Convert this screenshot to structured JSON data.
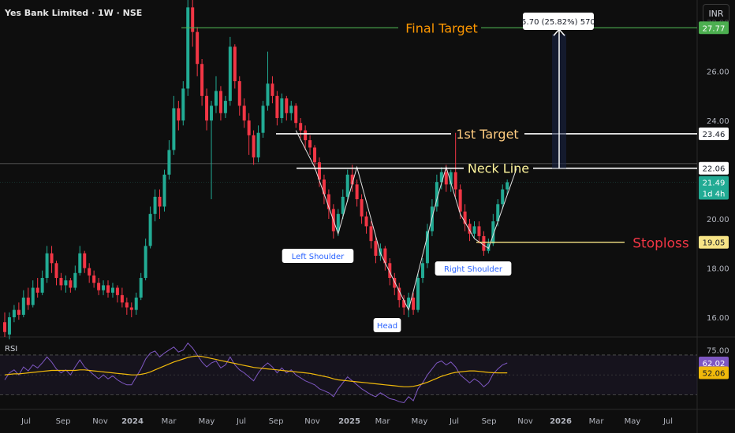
{
  "header": {
    "title": "Yes Bank Limited · 1W · NSE",
    "currency": "INR"
  },
  "colors": {
    "bg": "#0e0e0e",
    "up": "#22ab94",
    "down": "#f23645",
    "target": "#4caf50",
    "neck": "#ffffff",
    "stop": "#f7e486",
    "rsi": "#7e57c2",
    "rsi_ma": "#f0b90b",
    "pattern": "#e0e0e0",
    "arrow": "#ffffff"
  },
  "chart_data": [
    {
      "type": "candlestick",
      "title": "Yes Bank Limited · 1W · NSE",
      "x_ticks": [
        "Jul",
        "Sep",
        "Nov",
        "2024",
        "Mar",
        "May",
        "Jul",
        "Sep",
        "Nov",
        "2025",
        "Mar",
        "May",
        "Jul",
        "Sep",
        "Nov",
        "2026",
        "Mar",
        "May",
        "Jul"
      ],
      "y_ticks": [
        "16.00",
        "18.00",
        "20.00",
        "22.00",
        "24.00",
        "26.00"
      ],
      "ylim": [
        15.2,
        28.9
      ],
      "price_labels": [
        {
          "value": "27.77",
          "kind": "target"
        },
        {
          "value": "23.46",
          "kind": "neck"
        },
        {
          "value": "22.06",
          "kind": "neck"
        },
        {
          "value": "21.49",
          "kind": "last",
          "sub": "1d 4h"
        },
        {
          "value": "19.05",
          "kind": "stop"
        }
      ],
      "levels": [
        {
          "label": "Final Target",
          "value": 27.77
        },
        {
          "label": "1st Target",
          "value": 23.46
        },
        {
          "label": "Neck Line",
          "value": 22.06
        },
        {
          "label": "Stoploss",
          "value": 19.05
        }
      ],
      "annotations": [
        "Left Shoulder",
        "Head",
        "Right Shoulder"
      ],
      "measure_label": "5.70 (25.82%) 570",
      "candles": [
        [
          15.8,
          15.4,
          16.2,
          15.2
        ],
        [
          15.3,
          16.0,
          16.2,
          15.1
        ],
        [
          16.0,
          16.3,
          16.5,
          15.8
        ],
        [
          16.3,
          16.1,
          16.6,
          15.9
        ],
        [
          16.1,
          16.8,
          17.1,
          16.0
        ],
        [
          16.8,
          16.5,
          17.2,
          16.3
        ],
        [
          16.5,
          17.2,
          17.5,
          16.4
        ],
        [
          17.2,
          17.0,
          17.6,
          16.8
        ],
        [
          17.0,
          17.6,
          17.9,
          16.9
        ],
        [
          17.6,
          18.6,
          18.9,
          17.4
        ],
        [
          18.6,
          18.2,
          18.9,
          17.8
        ],
        [
          18.2,
          17.6,
          18.3,
          17.3
        ],
        [
          17.6,
          17.3,
          17.8,
          17.1
        ],
        [
          17.3,
          17.5,
          17.7,
          17.0
        ],
        [
          17.5,
          17.2,
          17.6,
          17.0
        ],
        [
          17.2,
          17.8,
          18.1,
          17.1
        ],
        [
          17.8,
          18.6,
          18.9,
          17.7
        ],
        [
          18.6,
          18.0,
          18.7,
          17.8
        ],
        [
          18.0,
          17.7,
          18.2,
          17.4
        ],
        [
          17.7,
          17.4,
          17.9,
          17.2
        ],
        [
          17.4,
          17.1,
          17.6,
          16.9
        ],
        [
          17.1,
          17.3,
          17.5,
          16.9
        ],
        [
          17.3,
          17.0,
          17.5,
          16.8
        ],
        [
          17.0,
          17.2,
          17.4,
          16.8
        ],
        [
          17.2,
          16.9,
          17.3,
          16.6
        ],
        [
          16.9,
          16.6,
          17.2,
          16.4
        ],
        [
          16.6,
          16.4,
          16.8,
          16.1
        ],
        [
          16.4,
          16.3,
          16.6,
          16.0
        ],
        [
          16.3,
          16.8,
          17.0,
          16.1
        ],
        [
          16.8,
          17.6,
          17.8,
          16.7
        ],
        [
          17.6,
          18.9,
          19.2,
          17.5
        ],
        [
          18.9,
          20.2,
          20.5,
          18.8
        ],
        [
          20.2,
          20.9,
          21.2,
          19.9
        ],
        [
          20.9,
          20.5,
          21.2,
          20.0
        ],
        [
          20.5,
          21.8,
          22.0,
          20.3
        ],
        [
          21.8,
          22.8,
          23.2,
          21.6
        ],
        [
          22.8,
          24.5,
          25.0,
          22.6
        ],
        [
          24.5,
          24.0,
          24.8,
          23.6
        ],
        [
          24.0,
          25.3,
          25.6,
          23.8
        ],
        [
          25.3,
          28.6,
          28.9,
          25.0
        ],
        [
          28.6,
          27.6,
          28.9,
          27.0
        ],
        [
          27.6,
          26.3,
          27.8,
          25.8
        ],
        [
          26.3,
          25.0,
          26.5,
          24.6
        ],
        [
          25.0,
          24.0,
          25.3,
          23.6
        ],
        [
          24.0,
          24.6,
          24.8,
          20.8
        ],
        [
          24.6,
          25.2,
          25.8,
          24.3
        ],
        [
          25.2,
          24.3,
          25.4,
          24.0
        ],
        [
          24.3,
          24.8,
          25.0,
          24.1
        ],
        [
          24.8,
          27.0,
          27.4,
          24.6
        ],
        [
          27.0,
          25.6,
          27.1,
          25.3
        ],
        [
          25.6,
          24.6,
          25.8,
          24.2
        ],
        [
          24.6,
          24.0,
          24.9,
          23.7
        ],
        [
          24.0,
          23.4,
          24.3,
          22.6
        ],
        [
          23.4,
          22.5,
          23.6,
          22.2
        ],
        [
          22.5,
          23.5,
          23.8,
          22.3
        ],
        [
          23.5,
          24.6,
          24.8,
          23.3
        ],
        [
          24.6,
          25.5,
          26.8,
          24.4
        ],
        [
          25.5,
          25.0,
          25.8,
          24.7
        ],
        [
          25.0,
          24.1,
          25.2,
          23.8
        ],
        [
          24.1,
          24.9,
          25.1,
          23.9
        ],
        [
          24.9,
          24.3,
          25.0,
          24.0
        ],
        [
          24.3,
          24.6,
          24.8,
          24.0
        ],
        [
          24.6,
          23.9,
          24.7,
          23.7
        ],
        [
          23.9,
          23.6,
          24.1,
          23.3
        ],
        [
          23.6,
          23.2,
          23.8,
          22.8
        ],
        [
          23.2,
          22.9,
          23.4,
          22.6
        ],
        [
          22.9,
          22.3,
          23.0,
          22.0
        ],
        [
          22.3,
          21.6,
          22.5,
          21.3
        ],
        [
          21.6,
          21.0,
          21.8,
          20.6
        ],
        [
          21.0,
          20.4,
          21.2,
          20.0
        ],
        [
          20.4,
          19.5,
          20.6,
          19.2
        ],
        [
          19.5,
          20.2,
          20.4,
          19.3
        ],
        [
          20.2,
          20.9,
          21.2,
          20.0
        ],
        [
          20.9,
          21.8,
          22.0,
          20.7
        ],
        [
          21.8,
          21.4,
          22.2,
          21.1
        ],
        [
          21.4,
          20.8,
          21.6,
          20.5
        ],
        [
          20.8,
          20.1,
          21.0,
          19.8
        ],
        [
          20.1,
          19.7,
          20.3,
          19.4
        ],
        [
          19.7,
          19.1,
          19.9,
          18.8
        ],
        [
          19.1,
          18.5,
          19.3,
          18.2
        ],
        [
          18.5,
          18.8,
          19.0,
          18.3
        ],
        [
          18.8,
          18.2,
          18.9,
          17.9
        ],
        [
          18.2,
          17.6,
          18.4,
          17.3
        ],
        [
          17.6,
          17.2,
          17.8,
          16.9
        ],
        [
          17.2,
          16.7,
          17.4,
          16.4
        ],
        [
          16.7,
          16.4,
          16.9,
          16.1
        ],
        [
          16.4,
          16.8,
          17.0,
          16.0
        ],
        [
          16.8,
          16.3,
          17.0,
          16.1
        ],
        [
          16.3,
          17.6,
          17.8,
          16.2
        ],
        [
          17.6,
          18.2,
          18.4,
          17.4
        ],
        [
          18.2,
          19.5,
          19.8,
          18.0
        ],
        [
          19.5,
          20.5,
          20.8,
          19.3
        ],
        [
          20.5,
          21.5,
          21.8,
          20.3
        ],
        [
          21.5,
          21.9,
          22.1,
          21.2
        ],
        [
          21.9,
          21.4,
          22.2,
          21.1
        ],
        [
          21.4,
          21.9,
          22.0,
          21.1
        ],
        [
          21.9,
          21.2,
          23.5,
          20.9
        ],
        [
          21.2,
          20.3,
          21.4,
          20.0
        ],
        [
          20.3,
          19.8,
          20.6,
          19.5
        ],
        [
          19.8,
          19.4,
          20.0,
          19.1
        ],
        [
          19.4,
          19.7,
          19.9,
          19.2
        ],
        [
          19.7,
          19.3,
          19.9,
          19.0
        ],
        [
          19.3,
          18.7,
          19.5,
          18.5
        ],
        [
          18.7,
          19.0,
          19.2,
          18.6
        ],
        [
          19.0,
          19.9,
          20.2,
          18.9
        ],
        [
          19.9,
          20.6,
          20.8,
          19.7
        ],
        [
          20.6,
          21.2,
          21.4,
          20.4
        ],
        [
          21.2,
          21.49,
          21.6,
          21.0
        ]
      ]
    },
    {
      "type": "line",
      "title": "RSI",
      "y_ticks": [
        "75.00"
      ],
      "ylim": [
        20,
        85
      ],
      "price_labels": [
        {
          "value": "62.02",
          "kind": "rsi"
        },
        {
          "value": "52.06",
          "kind": "rsi_ma"
        }
      ],
      "series": [
        {
          "values": [
            45,
            52,
            55,
            50,
            58,
            54,
            60,
            57,
            62,
            68,
            63,
            56,
            52,
            55,
            50,
            58,
            65,
            58,
            54,
            50,
            46,
            50,
            46,
            49,
            45,
            42,
            40,
            40,
            48,
            56,
            66,
            72,
            74,
            68,
            72,
            75,
            78,
            73,
            75,
            82,
            77,
            70,
            63,
            58,
            62,
            64,
            57,
            60,
            68,
            60,
            55,
            52,
            48,
            44,
            52,
            58,
            62,
            58,
            52,
            57,
            52,
            55,
            50,
            47,
            44,
            42,
            40,
            36,
            34,
            32,
            28,
            36,
            42,
            48,
            44,
            40,
            36,
            33,
            30,
            28,
            32,
            29,
            26,
            25,
            23,
            22,
            28,
            24,
            36,
            42,
            50,
            56,
            62,
            64,
            60,
            63,
            58,
            50,
            46,
            42,
            46,
            43,
            38,
            42,
            51,
            56,
            60,
            62
          ]
        },
        {
          "name": "",
          "values": [
            50,
            50.5,
            51,
            51,
            51.5,
            52,
            52.5,
            53,
            53.5,
            54,
            54.5,
            54.5,
            54.5,
            54.5,
            54.5,
            54.5,
            55,
            55,
            54.5,
            54,
            53.5,
            53,
            52.5,
            52,
            51.5,
            51,
            50.5,
            50,
            50,
            50.5,
            51.5,
            53,
            55,
            57,
            59,
            61,
            63,
            64.5,
            66,
            67.5,
            68.5,
            69,
            68.5,
            67.5,
            66.5,
            65.5,
            64.5,
            63.5,
            62.5,
            61.5,
            60.5,
            59.5,
            58.5,
            57.5,
            57,
            56.5,
            56,
            55.5,
            55,
            54.5,
            54,
            53.5,
            53,
            52.5,
            52,
            51.5,
            50.5,
            49.5,
            48.5,
            47.5,
            46,
            45,
            44.5,
            44,
            43.5,
            43,
            42.5,
            42,
            41.5,
            41,
            40.5,
            40,
            39.5,
            39,
            38.5,
            38,
            38,
            38.5,
            39.5,
            41,
            42.5,
            44.5,
            46.5,
            48.5,
            50,
            51.5,
            52.5,
            53,
            53.5,
            54,
            54,
            53.5,
            53,
            52.5,
            52.2,
            52,
            52,
            52.06
          ]
        }
      ]
    }
  ]
}
